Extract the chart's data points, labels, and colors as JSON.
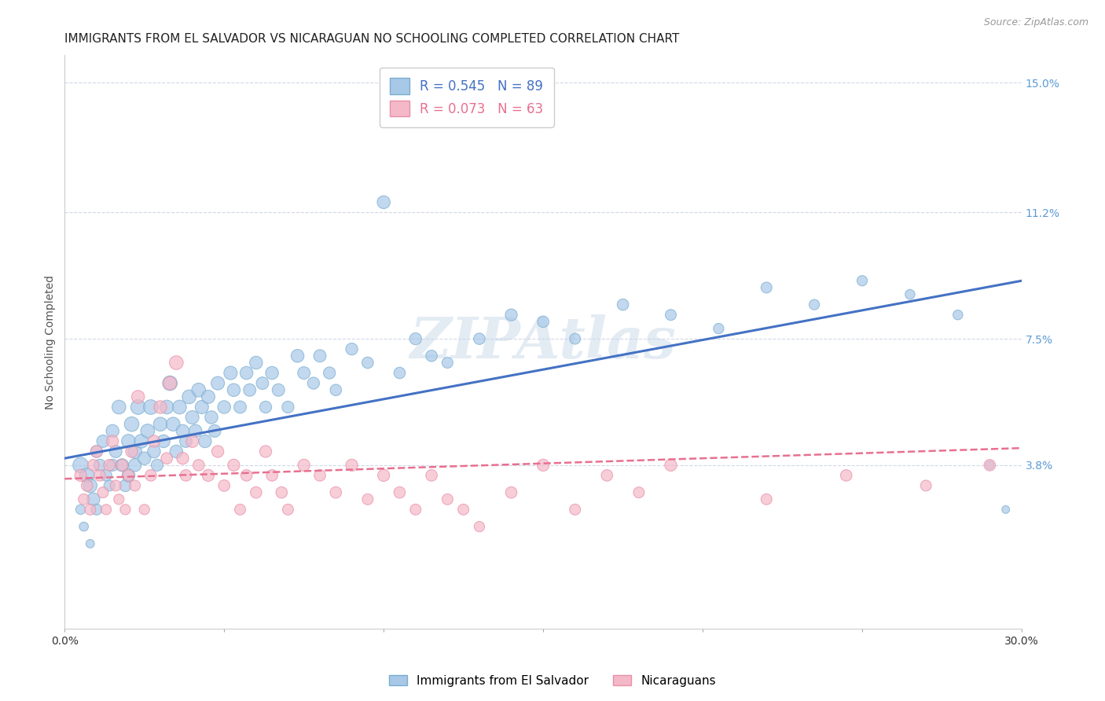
{
  "title": "IMMIGRANTS FROM EL SALVADOR VS NICARAGUAN NO SCHOOLING COMPLETED CORRELATION CHART",
  "source": "Source: ZipAtlas.com",
  "ylabel": "No Schooling Completed",
  "xlim": [
    0.0,
    0.3
  ],
  "ylim": [
    -0.01,
    0.158
  ],
  "xticks": [
    0.0,
    0.05,
    0.1,
    0.15,
    0.2,
    0.25,
    0.3
  ],
  "xticklabels": [
    "0.0%",
    "",
    "",
    "",
    "",
    "",
    "30.0%"
  ],
  "ytick_right_labels": [
    "3.8%",
    "7.5%",
    "11.2%",
    "15.0%"
  ],
  "ytick_right_vals": [
    0.038,
    0.075,
    0.112,
    0.15
  ],
  "blue_R": "0.545",
  "blue_N": "89",
  "pink_R": "0.073",
  "pink_N": "63",
  "blue_color": "#a8c8e8",
  "pink_color": "#f4b8c8",
  "blue_edge_color": "#7aaed0",
  "pink_edge_color": "#e890a8",
  "blue_line_color": "#4472c4",
  "pink_line_color": "#e87090",
  "right_axis_color": "#5b9bd5",
  "watermark": "ZIPAtlas",
  "legend1": "Immigrants from El Salvador",
  "legend2": "Nicaraguans",
  "blue_scatter_x": [
    0.005,
    0.007,
    0.008,
    0.009,
    0.01,
    0.01,
    0.011,
    0.012,
    0.013,
    0.014,
    0.015,
    0.015,
    0.016,
    0.017,
    0.018,
    0.019,
    0.02,
    0.02,
    0.021,
    0.022,
    0.022,
    0.023,
    0.024,
    0.025,
    0.026,
    0.027,
    0.028,
    0.029,
    0.03,
    0.031,
    0.032,
    0.033,
    0.034,
    0.035,
    0.036,
    0.037,
    0.038,
    0.039,
    0.04,
    0.041,
    0.042,
    0.043,
    0.044,
    0.045,
    0.046,
    0.047,
    0.048,
    0.05,
    0.052,
    0.053,
    0.055,
    0.057,
    0.058,
    0.06,
    0.062,
    0.063,
    0.065,
    0.067,
    0.07,
    0.073,
    0.075,
    0.078,
    0.08,
    0.083,
    0.085,
    0.09,
    0.095,
    0.1,
    0.105,
    0.11,
    0.115,
    0.12,
    0.13,
    0.14,
    0.15,
    0.16,
    0.175,
    0.19,
    0.205,
    0.22,
    0.235,
    0.25,
    0.265,
    0.28,
    0.29,
    0.295,
    0.005,
    0.006,
    0.008
  ],
  "blue_scatter_y": [
    0.038,
    0.035,
    0.032,
    0.028,
    0.042,
    0.025,
    0.038,
    0.045,
    0.035,
    0.032,
    0.048,
    0.038,
    0.042,
    0.055,
    0.038,
    0.032,
    0.045,
    0.035,
    0.05,
    0.042,
    0.038,
    0.055,
    0.045,
    0.04,
    0.048,
    0.055,
    0.042,
    0.038,
    0.05,
    0.045,
    0.055,
    0.062,
    0.05,
    0.042,
    0.055,
    0.048,
    0.045,
    0.058,
    0.052,
    0.048,
    0.06,
    0.055,
    0.045,
    0.058,
    0.052,
    0.048,
    0.062,
    0.055,
    0.065,
    0.06,
    0.055,
    0.065,
    0.06,
    0.068,
    0.062,
    0.055,
    0.065,
    0.06,
    0.055,
    0.07,
    0.065,
    0.062,
    0.07,
    0.065,
    0.06,
    0.072,
    0.068,
    0.115,
    0.065,
    0.075,
    0.07,
    0.068,
    0.075,
    0.082,
    0.08,
    0.075,
    0.085,
    0.082,
    0.078,
    0.09,
    0.085,
    0.092,
    0.088,
    0.082,
    0.038,
    0.025,
    0.025,
    0.02,
    0.015
  ],
  "blue_scatter_size": [
    200,
    180,
    160,
    140,
    120,
    100,
    120,
    130,
    110,
    100,
    140,
    120,
    130,
    160,
    140,
    120,
    160,
    140,
    180,
    160,
    140,
    180,
    160,
    140,
    160,
    180,
    140,
    120,
    160,
    140,
    160,
    180,
    160,
    140,
    160,
    140,
    130,
    160,
    150,
    140,
    160,
    150,
    140,
    150,
    140,
    130,
    150,
    140,
    150,
    140,
    130,
    140,
    130,
    140,
    130,
    120,
    140,
    130,
    120,
    140,
    130,
    120,
    130,
    120,
    110,
    120,
    110,
    140,
    110,
    120,
    110,
    100,
    110,
    120,
    110,
    100,
    110,
    100,
    90,
    100,
    90,
    90,
    80,
    80,
    60,
    50,
    80,
    70,
    60
  ],
  "pink_scatter_x": [
    0.005,
    0.006,
    0.007,
    0.008,
    0.009,
    0.01,
    0.011,
    0.012,
    0.013,
    0.014,
    0.015,
    0.016,
    0.017,
    0.018,
    0.019,
    0.02,
    0.021,
    0.022,
    0.023,
    0.025,
    0.027,
    0.028,
    0.03,
    0.032,
    0.033,
    0.035,
    0.037,
    0.038,
    0.04,
    0.042,
    0.045,
    0.048,
    0.05,
    0.053,
    0.055,
    0.057,
    0.06,
    0.063,
    0.065,
    0.068,
    0.07,
    0.075,
    0.08,
    0.085,
    0.09,
    0.095,
    0.1,
    0.105,
    0.11,
    0.115,
    0.12,
    0.125,
    0.13,
    0.14,
    0.15,
    0.16,
    0.17,
    0.18,
    0.19,
    0.22,
    0.245,
    0.27,
    0.29
  ],
  "pink_scatter_y": [
    0.035,
    0.028,
    0.032,
    0.025,
    0.038,
    0.042,
    0.035,
    0.03,
    0.025,
    0.038,
    0.045,
    0.032,
    0.028,
    0.038,
    0.025,
    0.035,
    0.042,
    0.032,
    0.058,
    0.025,
    0.035,
    0.045,
    0.055,
    0.04,
    0.062,
    0.068,
    0.04,
    0.035,
    0.045,
    0.038,
    0.035,
    0.042,
    0.032,
    0.038,
    0.025,
    0.035,
    0.03,
    0.042,
    0.035,
    0.03,
    0.025,
    0.038,
    0.035,
    0.03,
    0.038,
    0.028,
    0.035,
    0.03,
    0.025,
    0.035,
    0.028,
    0.025,
    0.02,
    0.03,
    0.038,
    0.025,
    0.035,
    0.03,
    0.038,
    0.028,
    0.035,
    0.032,
    0.038
  ],
  "pink_scatter_size": [
    120,
    100,
    110,
    100,
    110,
    120,
    110,
    100,
    90,
    110,
    120,
    100,
    90,
    110,
    90,
    110,
    120,
    100,
    140,
    90,
    110,
    120,
    140,
    110,
    150,
    160,
    120,
    110,
    130,
    110,
    120,
    120,
    110,
    120,
    100,
    110,
    110,
    120,
    110,
    110,
    100,
    120,
    110,
    110,
    120,
    100,
    120,
    110,
    100,
    110,
    100,
    100,
    90,
    110,
    120,
    100,
    110,
    100,
    120,
    100,
    110,
    100,
    110
  ],
  "blue_trendline_x": [
    0.0,
    0.3
  ],
  "blue_trendline_y": [
    0.04,
    0.092
  ],
  "pink_trendline_x": [
    0.0,
    0.3
  ],
  "pink_trendline_y": [
    0.034,
    0.043
  ],
  "background_color": "#ffffff",
  "grid_color": "#d0d8e8",
  "title_fontsize": 11,
  "axis_label_fontsize": 10,
  "tick_fontsize": 10
}
